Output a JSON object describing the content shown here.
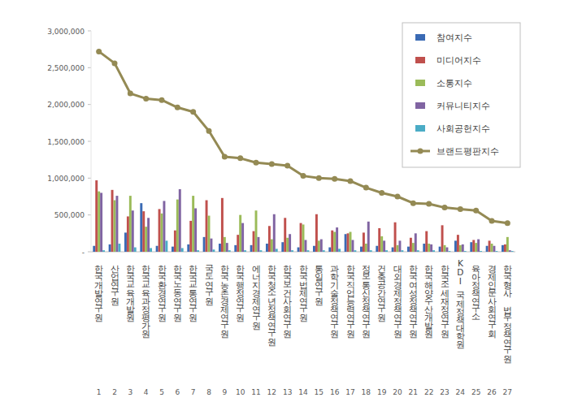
{
  "chart_data": {
    "type": "bar",
    "categories": [
      "한국개발연구원",
      "산업연구원",
      "한국교육개발원",
      "한국교육과정평가원",
      "한국환경연구원",
      "한국노동연구원",
      "한국교통연구원",
      "국토연구원",
      "한국농촌경제연구원",
      "한국행정연구원",
      "에너지경제연구원",
      "한국청소년정책연구원",
      "한국보건사회연구원",
      "한국법제연구원",
      "통일연구원",
      "과학기술정책연구원",
      "한국직업능력연구원",
      "정보통신정책연구원",
      "건축공간연구원",
      "대외경제정책연구원",
      "한국여성정책연구원",
      "한국해양수산개발원",
      "한국조세재정연구원",
      "KDI국제정책대학원",
      "육아정책연구소",
      "경제인문사회연구회",
      "한국형사·법무정책연구원"
    ],
    "ranks": [
      1,
      2,
      3,
      4,
      5,
      6,
      7,
      8,
      9,
      10,
      11,
      12,
      13,
      14,
      15,
      16,
      17,
      18,
      19,
      20,
      21,
      22,
      23,
      24,
      25,
      26,
      27
    ],
    "series": [
      {
        "name": "참여지수",
        "color": "#3a6ab4",
        "values": [
          80000,
          100000,
          260000,
          660000,
          80000,
          70000,
          100000,
          200000,
          110000,
          90000,
          90000,
          110000,
          130000,
          60000,
          80000,
          60000,
          240000,
          70000,
          80000,
          60000,
          70000,
          110000,
          70000,
          150000,
          130000,
          80000,
          90000
        ]
      },
      {
        "name": "미디어지수",
        "color": "#c0504d",
        "values": [
          970000,
          840000,
          480000,
          550000,
          580000,
          290000,
          420000,
          700000,
          730000,
          230000,
          280000,
          350000,
          460000,
          390000,
          510000,
          290000,
          250000,
          260000,
          320000,
          400000,
          190000,
          280000,
          360000,
          230000,
          160000,
          150000,
          100000
        ]
      },
      {
        "name": "소통지수",
        "color": "#9bbb59",
        "values": [
          820000,
          700000,
          760000,
          340000,
          520000,
          710000,
          760000,
          490000,
          200000,
          500000,
          560000,
          170000,
          190000,
          370000,
          150000,
          270000,
          270000,
          110000,
          210000,
          90000,
          120000,
          110000,
          90000,
          90000,
          120000,
          110000,
          200000
        ]
      },
      {
        "name": "커뮤니티지수",
        "color": "#8064a2",
        "values": [
          800000,
          760000,
          560000,
          460000,
          690000,
          850000,
          590000,
          180000,
          120000,
          390000,
          200000,
          510000,
          240000,
          160000,
          170000,
          330000,
          160000,
          410000,
          150000,
          150000,
          250000,
          100000,
          60000,
          100000,
          170000,
          80000,
          20000
        ]
      },
      {
        "name": "사회공헌지수",
        "color": "#4bacc6",
        "values": [
          20000,
          110000,
          60000,
          50000,
          150000,
          50000,
          20000,
          30000,
          20000,
          20000,
          20000,
          40000,
          20000,
          20000,
          20000,
          40000,
          20000,
          20000,
          20000,
          20000,
          20000,
          20000,
          10000,
          10000,
          10000,
          10000,
          10000
        ]
      },
      {
        "name": "브랜드평판지수",
        "color": "#948a54",
        "type": "line",
        "marker": "circle",
        "values": [
          2720000,
          2560000,
          2150000,
          2080000,
          2060000,
          1960000,
          1900000,
          1640000,
          1290000,
          1270000,
          1210000,
          1190000,
          1170000,
          1030000,
          1000000,
          990000,
          960000,
          870000,
          800000,
          750000,
          660000,
          650000,
          600000,
          580000,
          560000,
          420000,
          390000
        ]
      }
    ],
    "ylim": [
      0,
      3000000
    ],
    "yticks": [
      {
        "value": 0,
        "label": "-"
      },
      {
        "value": 500000,
        "label": "500,000"
      },
      {
        "value": 1000000,
        "label": "1,000,000"
      },
      {
        "value": 1500000,
        "label": "1,500,000"
      },
      {
        "value": 2000000,
        "label": "2,000,000"
      },
      {
        "value": 2500000,
        "label": "2,500,000"
      },
      {
        "value": 3000000,
        "label": "3,000,000"
      }
    ],
    "grid": false,
    "legend": "upper right"
  }
}
